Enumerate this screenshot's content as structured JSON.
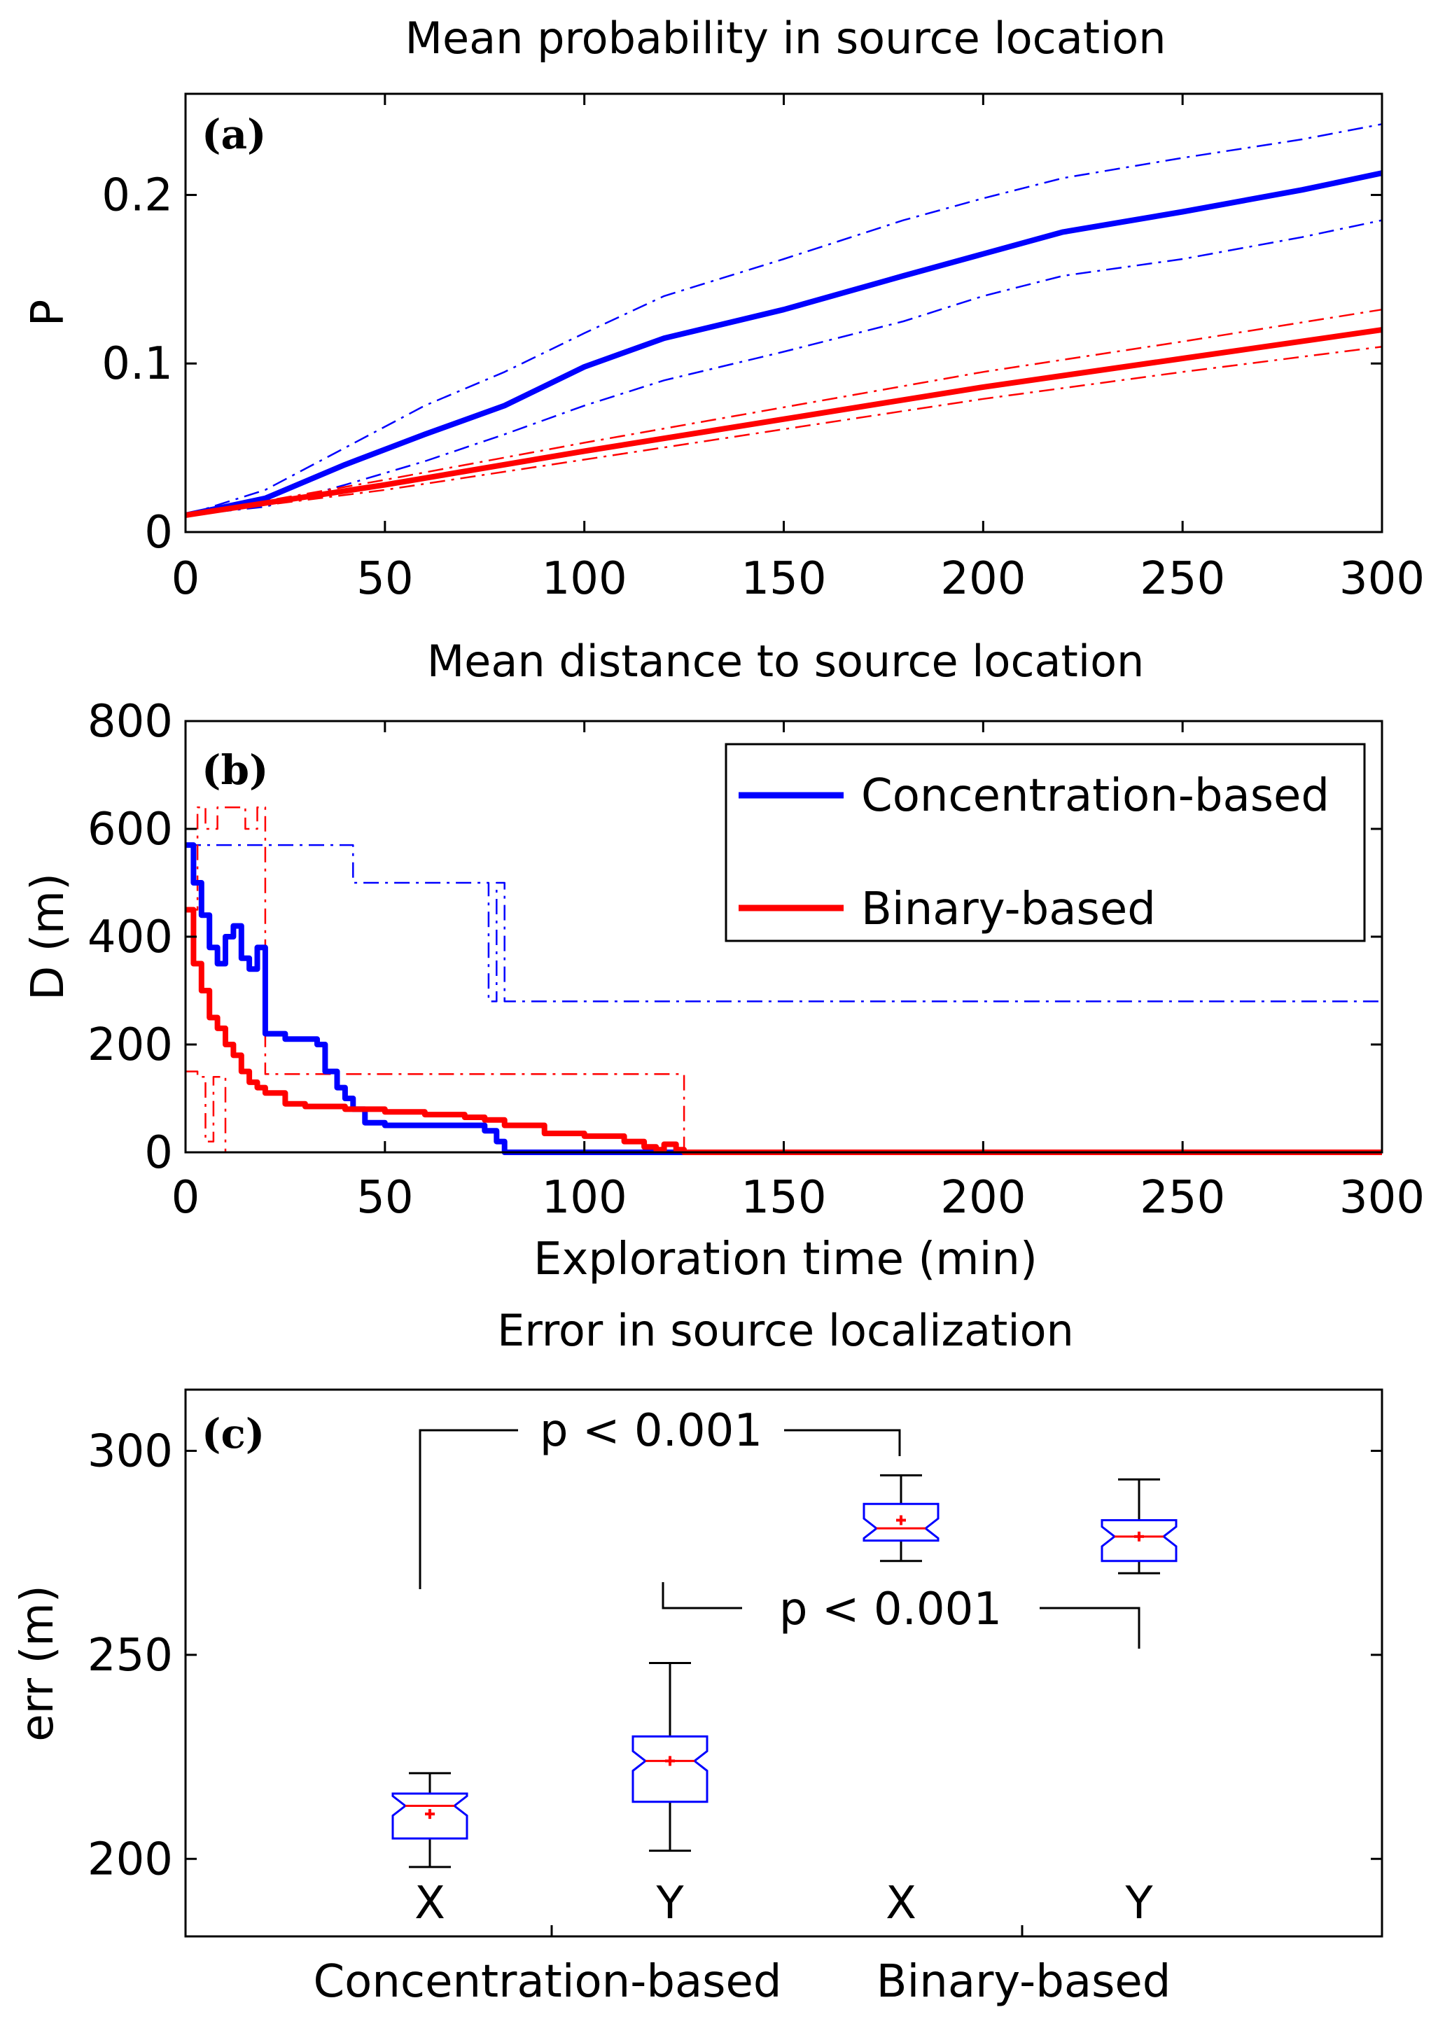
{
  "chart_data": [
    {
      "panel": "(a)",
      "type": "line",
      "title": "Mean probability in source location",
      "xlabel": "",
      "ylabel": "P",
      "xlim": [
        0,
        300
      ],
      "ylim": [
        0,
        0.26
      ],
      "xticks": [
        0,
        50,
        100,
        150,
        200,
        250,
        300
      ],
      "yticks": [
        0,
        0.1,
        0.2
      ],
      "ytick_labels": [
        "0",
        "0.1",
        "0.2"
      ],
      "series": [
        {
          "name": "Concentration-based",
          "color": "#0000ff",
          "style": "solid",
          "x": [
            0,
            20,
            40,
            60,
            80,
            100,
            120,
            150,
            180,
            200,
            220,
            250,
            280,
            300
          ],
          "y": [
            0.01,
            0.02,
            0.04,
            0.058,
            0.075,
            0.098,
            0.115,
            0.132,
            0.152,
            0.165,
            0.178,
            0.19,
            0.203,
            0.213
          ]
        },
        {
          "name": "Concentration-based upper",
          "color": "#0000ff",
          "style": "dashdot",
          "x": [
            0,
            20,
            40,
            60,
            80,
            100,
            120,
            150,
            180,
            200,
            220,
            250,
            280,
            300
          ],
          "y": [
            0.01,
            0.025,
            0.05,
            0.075,
            0.095,
            0.118,
            0.14,
            0.162,
            0.185,
            0.198,
            0.21,
            0.222,
            0.233,
            0.242
          ]
        },
        {
          "name": "Concentration-based lower",
          "color": "#0000ff",
          "style": "dashdot",
          "x": [
            0,
            20,
            40,
            60,
            80,
            100,
            120,
            150,
            180,
            200,
            220,
            250,
            280,
            300
          ],
          "y": [
            0.01,
            0.015,
            0.028,
            0.042,
            0.058,
            0.075,
            0.09,
            0.107,
            0.125,
            0.14,
            0.152,
            0.162,
            0.175,
            0.185
          ]
        },
        {
          "name": "Binary-based",
          "color": "#ff0000",
          "style": "solid",
          "x": [
            0,
            50,
            100,
            150,
            200,
            250,
            300
          ],
          "y": [
            0.01,
            0.028,
            0.048,
            0.067,
            0.086,
            0.103,
            0.12
          ]
        },
        {
          "name": "Binary-based upper",
          "color": "#ff0000",
          "style": "dashdot",
          "x": [
            0,
            50,
            100,
            150,
            200,
            250,
            300
          ],
          "y": [
            0.01,
            0.031,
            0.053,
            0.074,
            0.095,
            0.113,
            0.132
          ]
        },
        {
          "name": "Binary-based lower",
          "color": "#ff0000",
          "style": "dashdot",
          "x": [
            0,
            50,
            100,
            150,
            200,
            250,
            300
          ],
          "y": [
            0.01,
            0.025,
            0.043,
            0.061,
            0.079,
            0.095,
            0.11
          ]
        }
      ]
    },
    {
      "panel": "(b)",
      "type": "line",
      "title": "Mean distance to source location",
      "xlabel": "Exploration time (min)",
      "ylabel": "D (m)",
      "xlim": [
        0,
        300
      ],
      "ylim": [
        0,
        800
      ],
      "xticks": [
        0,
        50,
        100,
        150,
        200,
        250,
        300
      ],
      "yticks": [
        0,
        200,
        400,
        600,
        800
      ],
      "legend": [
        "Concentration-based",
        "Binary-based"
      ],
      "legend_position": "top-right",
      "series": [
        {
          "name": "Concentration-based",
          "color": "#0000ff",
          "style": "solid",
          "step": true,
          "x": [
            0,
            2,
            4,
            6,
            8,
            10,
            12,
            14,
            16,
            18,
            20,
            25,
            30,
            33,
            35,
            38,
            40,
            42,
            45,
            50,
            60,
            70,
            75,
            78,
            80,
            300
          ],
          "y": [
            570,
            500,
            440,
            380,
            350,
            400,
            420,
            360,
            340,
            380,
            220,
            210,
            210,
            200,
            150,
            120,
            100,
            80,
            55,
            50,
            50,
            50,
            40,
            20,
            0,
            0
          ]
        },
        {
          "name": "Concentration-based upper",
          "color": "#0000ff",
          "style": "dashdot",
          "step": true,
          "x": [
            0,
            20,
            40,
            42,
            75,
            76,
            78,
            80,
            300
          ],
          "y": [
            570,
            570,
            570,
            500,
            500,
            280,
            500,
            280,
            0
          ]
        },
        {
          "name": "Concentration-based lower",
          "color": "#0000ff",
          "style": "dashdot",
          "step": true,
          "x": [
            0,
            2,
            3,
            300
          ],
          "y": [
            0,
            0,
            0,
            0
          ]
        },
        {
          "name": "Binary-based",
          "color": "#ff0000",
          "style": "solid",
          "step": true,
          "x": [
            0,
            2,
            4,
            6,
            8,
            10,
            12,
            14,
            16,
            18,
            20,
            25,
            30,
            40,
            50,
            60,
            70,
            75,
            80,
            90,
            100,
            110,
            115,
            118,
            120,
            123,
            125,
            300
          ],
          "y": [
            450,
            350,
            300,
            250,
            230,
            200,
            180,
            150,
            130,
            120,
            110,
            90,
            85,
            80,
            75,
            70,
            65,
            60,
            50,
            35,
            30,
            20,
            10,
            5,
            15,
            5,
            0,
            0
          ]
        },
        {
          "name": "Binary-based upper",
          "color": "#ff0000",
          "style": "dashdot",
          "step": true,
          "x": [
            0,
            3,
            5,
            8,
            12,
            15,
            18,
            20,
            22,
            113,
            118,
            123,
            125,
            300
          ],
          "y": [
            450,
            640,
            600,
            640,
            640,
            600,
            640,
            145,
            145,
            145,
            145,
            145,
            0,
            0
          ]
        },
        {
          "name": "Binary-based lower",
          "color": "#ff0000",
          "style": "dashdot",
          "step": true,
          "x": [
            0,
            3,
            5,
            7,
            10,
            300
          ],
          "y": [
            150,
            140,
            20,
            140,
            0,
            0
          ]
        }
      ]
    },
    {
      "panel": "(c)",
      "type": "box",
      "title": "Error in source localization",
      "xlabel": "",
      "ylabel": "err (m)",
      "ylim": [
        181,
        315
      ],
      "yticks": [
        200,
        250,
        300
      ],
      "groups": [
        "Concentration-based",
        "Binary-based"
      ],
      "boxes": [
        {
          "group": "Concentration-based",
          "label": "X",
          "whisker_low": 198,
          "q1": 205,
          "median": 213,
          "q3": 216,
          "whisker_high": 221,
          "mean": 211
        },
        {
          "group": "Concentration-based",
          "label": "Y",
          "whisker_low": 202,
          "q1": 214,
          "median": 224,
          "q3": 230,
          "whisker_high": 248,
          "mean": 224
        },
        {
          "group": "Binary-based",
          "label": "X",
          "whisker_low": 273,
          "q1": 278,
          "median": 281,
          "q3": 287,
          "whisker_high": 294,
          "mean": 283
        },
        {
          "group": "Binary-based",
          "label": "Y",
          "whisker_low": 270,
          "q1": 273,
          "median": 279,
          "q3": 283,
          "whisker_high": 293,
          "mean": 279
        }
      ],
      "annotations": [
        {
          "text": "p < 0.001",
          "between": [
            "Concentration-based X",
            "Binary-based X"
          ]
        },
        {
          "text": "p < 0.001",
          "between": [
            "Concentration-based Y",
            "Binary-based Y"
          ]
        }
      ]
    }
  ]
}
